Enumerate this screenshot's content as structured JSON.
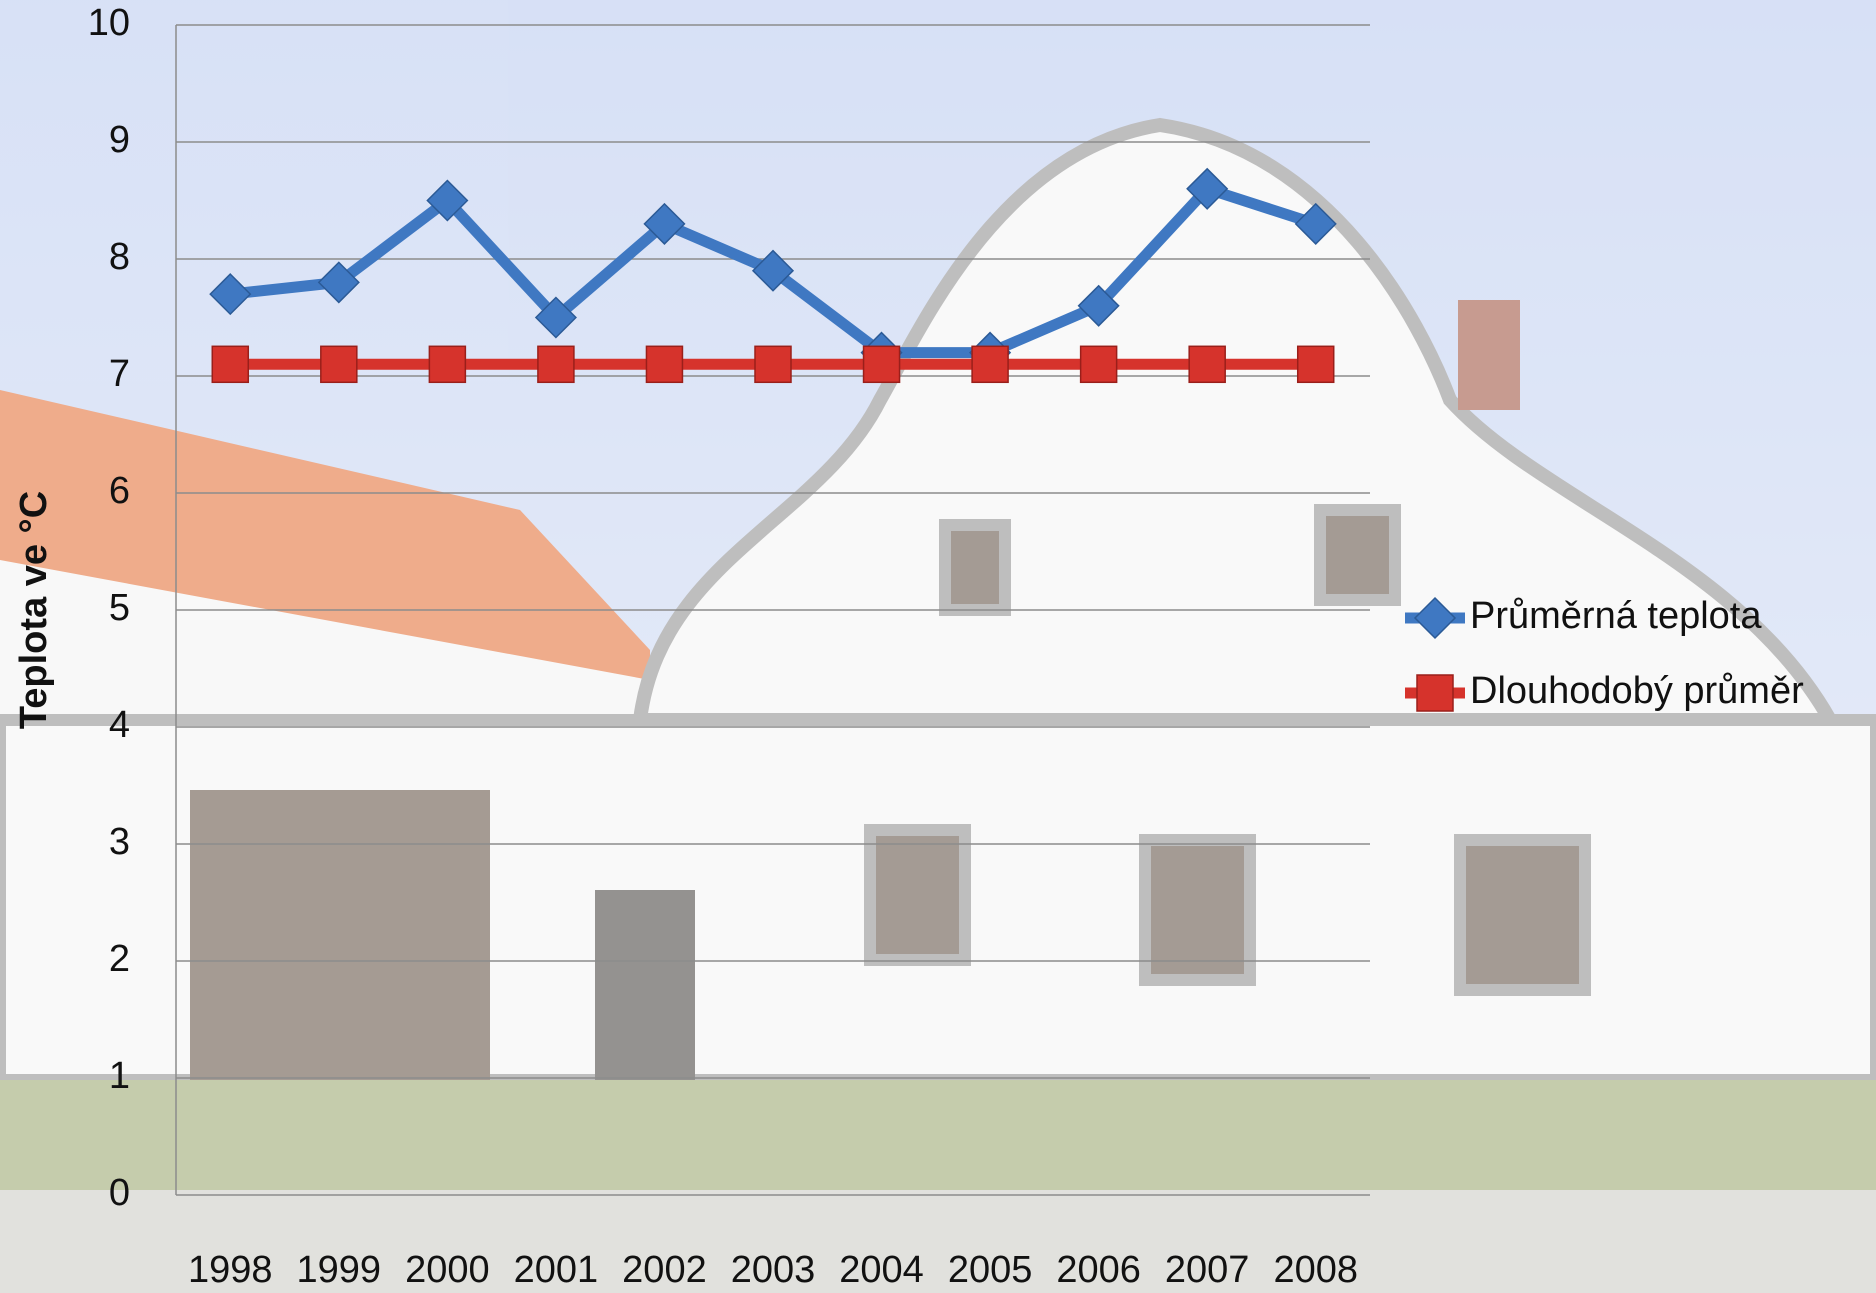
{
  "chart_data": {
    "type": "line",
    "y_label": "Teplota ve °C",
    "categories": [
      "1998",
      "1999",
      "2000",
      "2001",
      "2002",
      "2003",
      "2004",
      "2005",
      "2006",
      "2007",
      "2008"
    ],
    "series": [
      {
        "name": "Průměrná teplota",
        "color": "#3f78c2",
        "marker": "diamond",
        "values": [
          7.7,
          7.8,
          8.5,
          7.5,
          8.3,
          7.9,
          7.2,
          7.2,
          7.6,
          8.6,
          8.3
        ]
      },
      {
        "name": "Dlouhodobý průměr",
        "color": "#d6332c",
        "marker": "square",
        "values": [
          7.1,
          7.1,
          7.1,
          7.1,
          7.1,
          7.1,
          7.1,
          7.1,
          7.1,
          7.1,
          7.1
        ]
      }
    ],
    "ylim": [
      0,
      10
    ],
    "yticks": [
      0,
      1,
      2,
      3,
      4,
      5,
      6,
      7,
      8,
      9,
      10
    ],
    "grid": true,
    "legend": "right"
  }
}
